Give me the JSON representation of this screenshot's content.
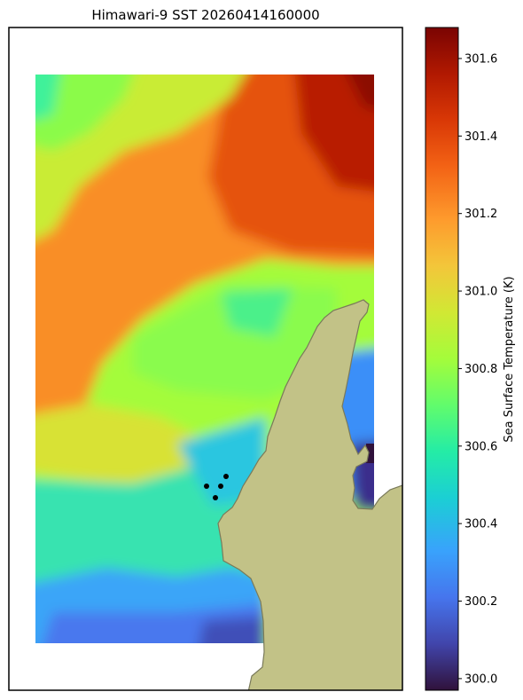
{
  "chart_data": {
    "type": "heatmap",
    "title": "Himawari-9 SST 20260414160000",
    "colorbar": {
      "label": "Sea Surface Temperature (K)",
      "ticks": [
        "300.0",
        "300.2",
        "300.4",
        "300.6",
        "300.8",
        "301.0",
        "301.2",
        "301.4",
        "301.6"
      ],
      "range": [
        299.97,
        301.68
      ],
      "colormap": "turbo"
    },
    "grid": false,
    "features": [
      "sea surface temperature field",
      "land mask",
      "4 black point markers",
      "white no-data border"
    ]
  },
  "colors": {
    "land": "#c2c287",
    "coast": "#7a7a5a",
    "frame": "#000000",
    "markers": "#000000",
    "nodata": "#ffffff"
  }
}
